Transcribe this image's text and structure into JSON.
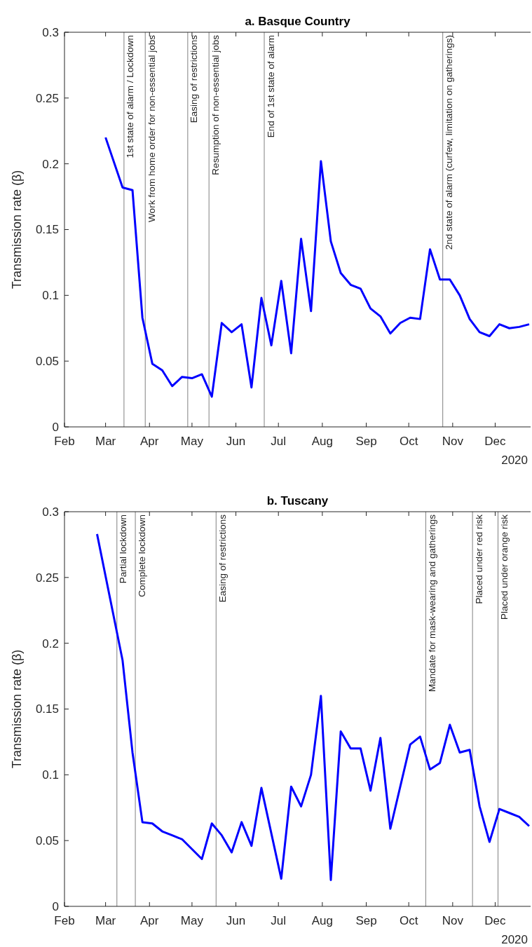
{
  "chart_data": [
    {
      "type": "line",
      "title": "a. Basque Country",
      "ylabel": "Transmission rate (β)",
      "series": [
        {
          "color": "#0000ff",
          "x": [
            "2020-03-01",
            "2020-03-13",
            "2020-03-20",
            "2020-03-27",
            "2020-04-03",
            "2020-04-10",
            "2020-04-17",
            "2020-04-24",
            "2020-05-01",
            "2020-05-08",
            "2020-05-15",
            "2020-05-22",
            "2020-05-29",
            "2020-06-05",
            "2020-06-12",
            "2020-06-19",
            "2020-06-26",
            "2020-07-03",
            "2020-07-10",
            "2020-07-17",
            "2020-07-24",
            "2020-07-31",
            "2020-08-07",
            "2020-08-14",
            "2020-08-21",
            "2020-08-28",
            "2020-09-04",
            "2020-09-11",
            "2020-09-18",
            "2020-09-25",
            "2020-10-02",
            "2020-10-09",
            "2020-10-16",
            "2020-10-23",
            "2020-10-30",
            "2020-11-06",
            "2020-11-13",
            "2020-11-20",
            "2020-11-27",
            "2020-12-04",
            "2020-12-11",
            "2020-12-18",
            "2020-12-25"
          ],
          "values": [
            0.22,
            0.182,
            0.18,
            0.083,
            0.048,
            0.043,
            0.031,
            0.038,
            0.037,
            0.04,
            0.023,
            0.079,
            0.072,
            0.078,
            0.03,
            0.098,
            0.062,
            0.111,
            0.056,
            0.143,
            0.088,
            0.202,
            0.141,
            0.117,
            0.108,
            0.105,
            0.09,
            0.084,
            0.071,
            0.079,
            0.083,
            0.082,
            0.135,
            0.112,
            0.112,
            0.1,
            0.082,
            0.072,
            0.069,
            0.078,
            0.075,
            0.076,
            0.078
          ]
        }
      ],
      "xlim": [
        "2020-02-01",
        "2020-12-26"
      ],
      "xticks": [
        {
          "value": "2020-02-01",
          "label": "Feb"
        },
        {
          "value": "2020-03-01",
          "label": "Mar"
        },
        {
          "value": "2020-04-01",
          "label": "Apr"
        },
        {
          "value": "2020-05-01",
          "label": "May"
        },
        {
          "value": "2020-06-01",
          "label": "Jun"
        },
        {
          "value": "2020-07-01",
          "label": "Jul"
        },
        {
          "value": "2020-08-01",
          "label": "Aug"
        },
        {
          "value": "2020-09-01",
          "label": "Sep"
        },
        {
          "value": "2020-10-01",
          "label": "Oct"
        },
        {
          "value": "2020-11-01",
          "label": "Nov"
        },
        {
          "value": "2020-12-01",
          "label": "Dec"
        }
      ],
      "ylim": [
        0,
        0.3
      ],
      "yticks": [
        0,
        0.05,
        0.1,
        0.15,
        0.2,
        0.25,
        0.3
      ],
      "ref_lines": [
        {
          "axis": "x",
          "value": "2020-03-14",
          "label": "1st state of alarm / Lockdown",
          "color": "#808080"
        },
        {
          "axis": "x",
          "value": "2020-03-29",
          "label": "Work from home order for non-essential jobs",
          "color": "#808080"
        },
        {
          "axis": "x",
          "value": "2020-04-28",
          "label": "Easing of restrictions",
          "color": "#808080"
        },
        {
          "axis": "x",
          "value": "2020-05-13",
          "label": "Resumption of non-essential jobs",
          "color": "#808080"
        },
        {
          "axis": "x",
          "value": "2020-06-21",
          "label": "End of 1st state of alarm",
          "color": "#808080"
        },
        {
          "axis": "x",
          "value": "2020-10-25",
          "label": "2nd state of alarm (curfew, limitation on gatherings)",
          "color": "#808080"
        }
      ],
      "annotations": [
        "2020"
      ]
    },
    {
      "type": "line",
      "title": "b. Tuscany",
      "ylabel": "Transmission rate (β)",
      "series": [
        {
          "color": "#0000ff",
          "x": [
            "2020-02-24",
            "2020-03-13",
            "2020-03-20",
            "2020-03-27",
            "2020-04-03",
            "2020-04-10",
            "2020-04-17",
            "2020-04-24",
            "2020-05-08",
            "2020-05-15",
            "2020-05-22",
            "2020-05-29",
            "2020-06-05",
            "2020-06-12",
            "2020-06-19",
            "2020-07-03",
            "2020-07-10",
            "2020-07-17",
            "2020-07-24",
            "2020-07-31",
            "2020-08-07",
            "2020-08-14",
            "2020-08-21",
            "2020-08-28",
            "2020-09-04",
            "2020-09-11",
            "2020-09-18",
            "2020-10-02",
            "2020-10-09",
            "2020-10-16",
            "2020-10-23",
            "2020-10-30",
            "2020-11-06",
            "2020-11-13",
            "2020-11-20",
            "2020-11-27",
            "2020-12-04",
            "2020-12-11",
            "2020-12-18",
            "2020-12-25"
          ],
          "values": [
            0.283,
            0.187,
            0.117,
            0.064,
            0.063,
            0.057,
            0.054,
            0.051,
            0.036,
            0.063,
            0.054,
            0.041,
            0.064,
            0.046,
            0.09,
            0.021,
            0.091,
            0.076,
            0.1,
            0.16,
            0.02,
            0.133,
            0.12,
            0.12,
            0.088,
            0.128,
            0.059,
            0.123,
            0.129,
            0.104,
            0.109,
            0.138,
            0.117,
            0.119,
            0.076,
            0.049,
            0.074,
            0.071,
            0.068,
            0.061
          ]
        }
      ],
      "xlim": [
        "2020-02-01",
        "2020-12-26"
      ],
      "xticks": [
        {
          "value": "2020-02-01",
          "label": "Feb"
        },
        {
          "value": "2020-03-01",
          "label": "Mar"
        },
        {
          "value": "2020-04-01",
          "label": "Apr"
        },
        {
          "value": "2020-05-01",
          "label": "May"
        },
        {
          "value": "2020-06-01",
          "label": "Jun"
        },
        {
          "value": "2020-07-01",
          "label": "Jul"
        },
        {
          "value": "2020-08-01",
          "label": "Aug"
        },
        {
          "value": "2020-09-01",
          "label": "Sep"
        },
        {
          "value": "2020-10-01",
          "label": "Oct"
        },
        {
          "value": "2020-11-01",
          "label": "Nov"
        },
        {
          "value": "2020-12-01",
          "label": "Dec"
        }
      ],
      "ylim": [
        0,
        0.3
      ],
      "yticks": [
        0,
        0.05,
        0.1,
        0.15,
        0.2,
        0.25,
        0.3
      ],
      "ref_lines": [
        {
          "axis": "x",
          "value": "2020-03-09",
          "label": "Partial lockdown",
          "color": "#808080"
        },
        {
          "axis": "x",
          "value": "2020-03-22",
          "label": "Complete lockdown",
          "color": "#808080"
        },
        {
          "axis": "x",
          "value": "2020-05-18",
          "label": "Easing of restrictions",
          "color": "#808080"
        },
        {
          "axis": "x",
          "value": "2020-10-13",
          "label": "Mandate for mask-wearing and gatherings",
          "color": "#808080"
        },
        {
          "axis": "x",
          "value": "2020-11-15",
          "label": "Placed under red risk",
          "color": "#808080"
        },
        {
          "axis": "x",
          "value": "2020-12-03",
          "label": "Placed under orange risk",
          "color": "#808080"
        }
      ],
      "annotations": [
        "2020"
      ]
    }
  ]
}
